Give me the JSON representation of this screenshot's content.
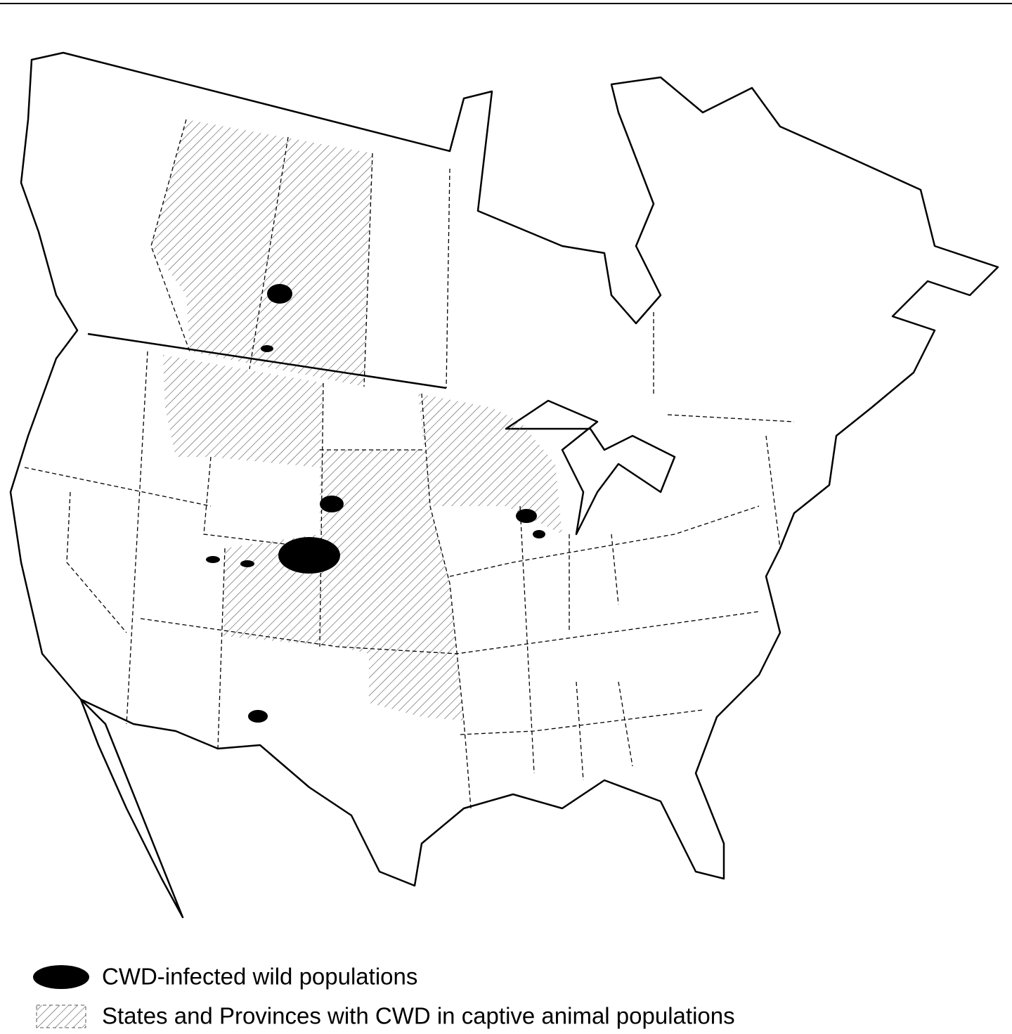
{
  "legend": [
    {
      "label": "CWD-infected wild populations"
    },
    {
      "label": "States and Provinces with CWD in captive animal populations"
    }
  ]
}
